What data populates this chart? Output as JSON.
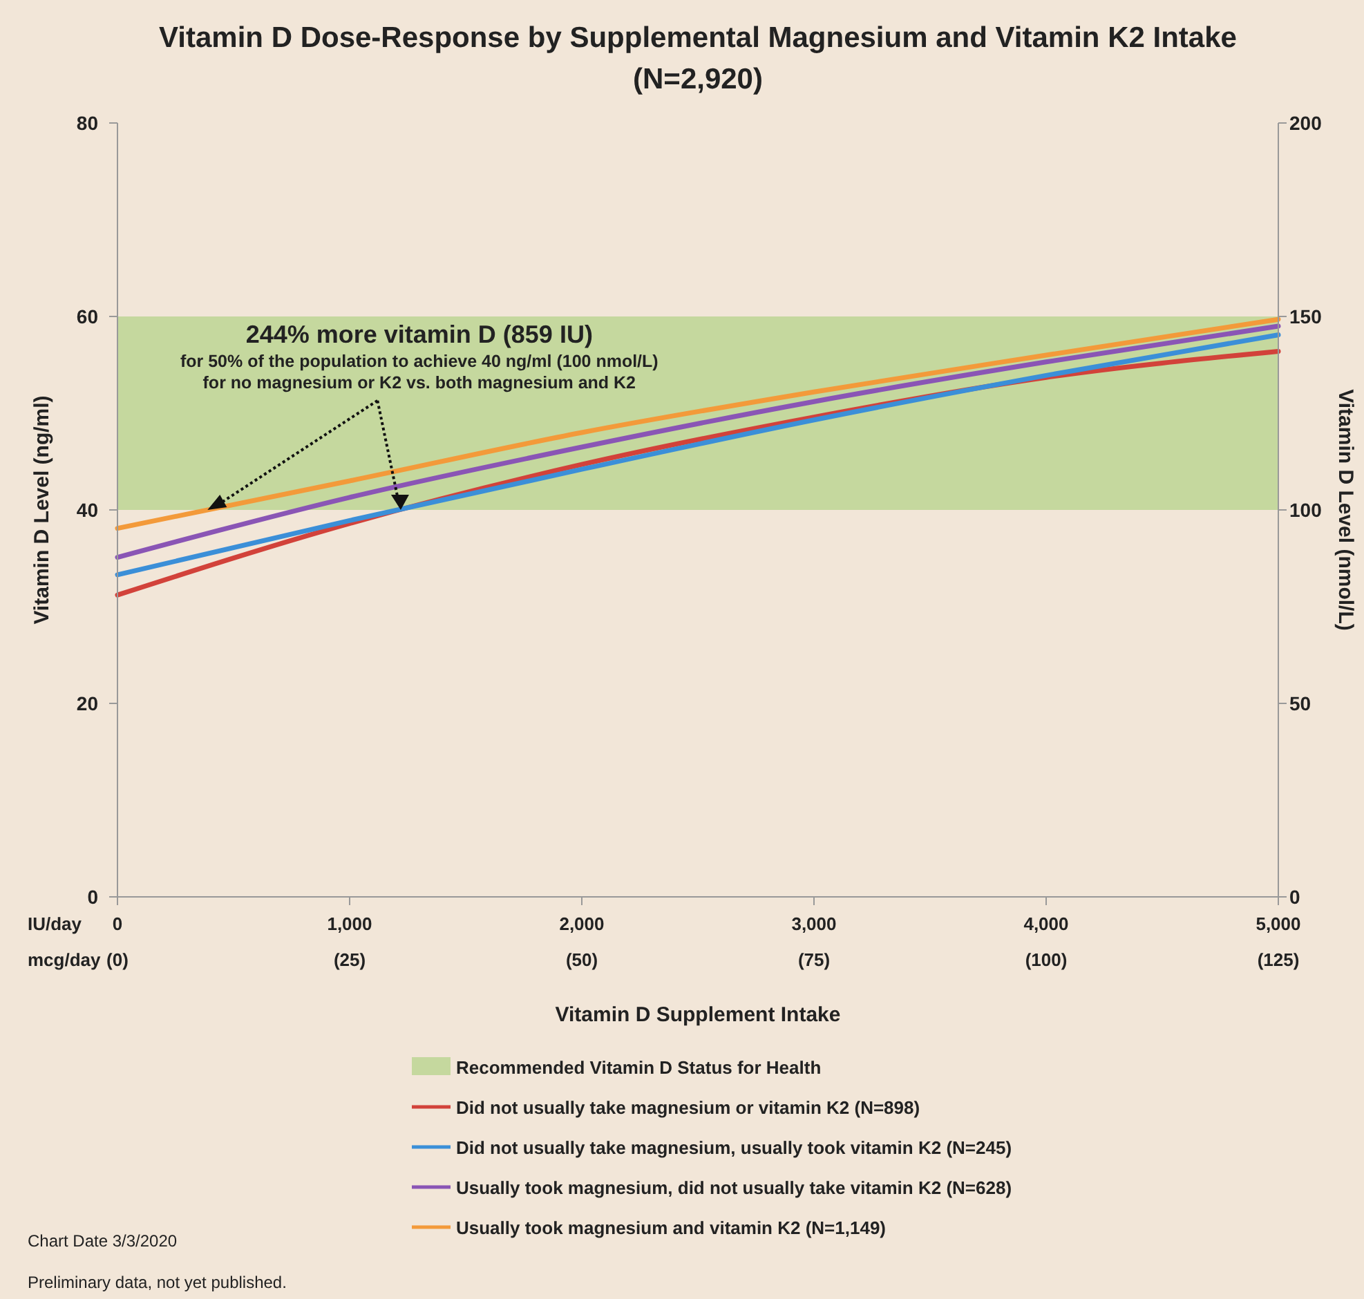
{
  "chart_data": {
    "type": "line",
    "title": "Vitamin D Dose-Response by Supplemental Magnesium and Vitamin K2 Intake",
    "subtitle": "(N=2,920)",
    "xlabel": "Vitamin D Supplement Intake",
    "ylabel": "Vitamin D Level (ng/ml)",
    "y2label": "Vitamin D Level (nmol/L)",
    "x": [
      0,
      1000,
      2000,
      3000,
      4000,
      5000
    ],
    "series": [
      {
        "name": "Did not usually take magnesium or vitamin K2 (N=898)",
        "color": "#d2423a",
        "values": [
          31.2,
          38.6,
          44.7,
          49.6,
          53.7,
          56.4
        ]
      },
      {
        "name": "Did not usually take magnesium, usually took vitamin K2 (N=245)",
        "color": "#3b8fd8",
        "values": [
          33.3,
          38.9,
          44.2,
          49.3,
          53.9,
          58.1
        ]
      },
      {
        "name": "Usually took magnesium, did not usually take vitamin K2 (N=628)",
        "color": "#8a55b5",
        "values": [
          35.1,
          41.3,
          46.5,
          51.2,
          55.3,
          59.0
        ]
      },
      {
        "name": "Usually took magnesium and vitamin K2 (N=1,149)",
        "color": "#f39a3a",
        "values": [
          38.1,
          43.0,
          48.0,
          52.2,
          56.0,
          59.7
        ]
      }
    ],
    "xlim": [
      0,
      5000
    ],
    "xticks": [
      0,
      {
        "value": 1000,
        "label": "1,000"
      },
      {
        "value": 2000,
        "label": "2,000"
      },
      {
        "value": 3000,
        "label": "3,000"
      },
      {
        "value": 4000,
        "label": "4,000"
      },
      {
        "value": 5000,
        "label": "5,000"
      }
    ],
    "x2lim": [
      0,
      125
    ],
    "x2ticks": [
      {
        "value": 0,
        "label": "(0)"
      },
      {
        "value": 25,
        "label": "(25)"
      },
      {
        "value": 50,
        "label": "(50)"
      },
      {
        "value": 75,
        "label": "(75)"
      },
      {
        "value": 100,
        "label": "(100)"
      },
      {
        "value": 125,
        "label": "(125)"
      }
    ],
    "ylim": [
      0,
      80
    ],
    "yticks": [
      0,
      20,
      40,
      60,
      80
    ],
    "y2lim": [
      0,
      200
    ],
    "y2ticks": [
      0,
      50,
      100,
      150,
      200
    ],
    "bands": [
      {
        "axis": "y",
        "from": 40,
        "to": 60,
        "label": "Recommended Vitamin D Status for Health",
        "color": "#c5d89e"
      }
    ],
    "annotations": [
      "244% more vitamin D (859 IU)",
      "for 50% of the population to achieve 40 ng/ml (100 nmol/L)",
      {
        "text": "for no magnesium or K2 vs. both magnesium and K2",
        "x": 1220,
        "y": 40
      },
      "IU/day",
      "mcg/day",
      "Chart Date 3/3/2020",
      "Preliminary data, not yet published."
    ],
    "legend": "bottom",
    "grid": false,
    "marker": "none",
    "line_style": "solid"
  }
}
